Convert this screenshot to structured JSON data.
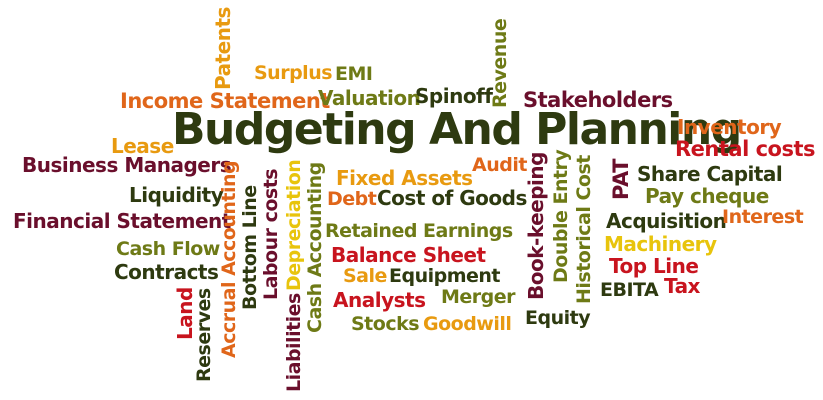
{
  "palette": {
    "orange": "#e0661a",
    "amber": "#e89a10",
    "red": "#c8141e",
    "olive": "#6e7a16",
    "dark_green": "#2e3a10",
    "maroon": "#6a0f2c",
    "yellow": "#e8c40c"
  },
  "words": {
    "budgeting_and_planning": "Budgeting And Planning",
    "income_statement": "Income Statement",
    "surplus": "Surplus",
    "emi": "EMI",
    "patents": "Patents",
    "valuation": "Valuation",
    "spinoff": "Spinoff",
    "revenue": "Revenue",
    "stakeholders": "Stakeholders",
    "lease": "Lease",
    "inventory": "Inventory",
    "rental_costs": "Rental costs",
    "business_managers": "Business Managers",
    "fixed_assets": "Fixed Assets",
    "audit": "Audit",
    "liquidity": "Liquidity",
    "debt": "Debt",
    "cost_of_goods": "Cost of Goods",
    "share_capital": "Share Capital",
    "pay_cheque": "Pay cheque",
    "financial_statement": "Financial Statement",
    "retained_earnings": "Retained Earnings",
    "acquisition": "Acquisition",
    "interest": "Interest",
    "cash_flow": "Cash Flow",
    "balance_sheet": "Balance Sheet",
    "machinery": "Machinery",
    "contracts": "Contracts",
    "sale": "Sale",
    "equipment": "Equipment",
    "top_line": "Top Line",
    "tax": "Tax",
    "ebita": "EBITA",
    "analysts": "Analysts",
    "merger": "Merger",
    "stocks": "Stocks",
    "goodwill": "Goodwill",
    "equity": "Equity",
    "pat": "PAT",
    "accrual_accounting": "Accrual Accounting",
    "bottom_line": "Bottom Line",
    "labour_costs": "Labour costs",
    "depreciation": "Depreciation",
    "cash_accounting": "Cash Accounting",
    "liabilities": "Liabilities",
    "land": "Land",
    "reserves": "Reserves",
    "book_keeping": "Book-keeping",
    "double_entry": "Double Entry",
    "historical_cost": "Historical Cost"
  }
}
